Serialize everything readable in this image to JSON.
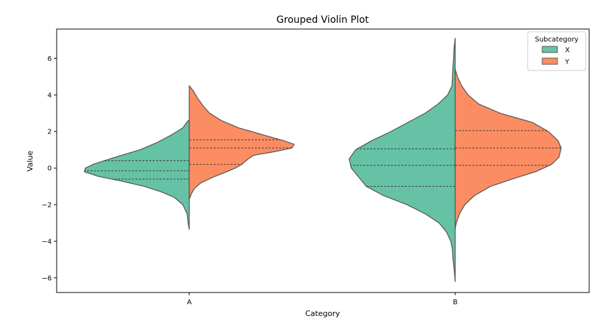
{
  "chart_data": {
    "type": "violin",
    "title": "Grouped Violin Plot",
    "xlabel": "Category",
    "ylabel": "Value",
    "categories": [
      "A",
      "B"
    ],
    "ylim": [
      -6.8,
      7.6
    ],
    "yticks": [
      -6,
      -4,
      -2,
      0,
      2,
      4,
      6
    ],
    "split": true,
    "inner": "quartile",
    "legend": {
      "title": "Subcategory",
      "placement": "top-right"
    },
    "series": [
      {
        "name": "X",
        "color": "#66c2a5",
        "violins": [
          {
            "category": "A",
            "quartiles": [
              -0.6,
              -0.15,
              0.4
            ],
            "profile": [
              [
                2.6,
                0.01
              ],
              [
                2.2,
                0.06
              ],
              [
                1.8,
                0.17
              ],
              [
                1.4,
                0.3
              ],
              [
                1.0,
                0.46
              ],
              [
                0.6,
                0.69
              ],
              [
                0.2,
                0.9
              ],
              [
                0.0,
                0.97
              ],
              [
                -0.2,
                0.98
              ],
              [
                -0.45,
                0.85
              ],
              [
                -0.7,
                0.64
              ],
              [
                -1.0,
                0.42
              ],
              [
                -1.3,
                0.26
              ],
              [
                -1.6,
                0.14
              ],
              [
                -2.0,
                0.06
              ],
              [
                -2.5,
                0.02
              ],
              [
                -3.0,
                0.01
              ],
              [
                -3.35,
                0.0
              ]
            ]
          },
          {
            "category": "B",
            "quartiles": [
              -1.0,
              0.15,
              1.05
            ],
            "profile": [
              [
                7.1,
                0.0
              ],
              [
                6.6,
                0.01
              ],
              [
                6.0,
                0.015
              ],
              [
                5.6,
                0.02
              ],
              [
                5.0,
                0.025
              ],
              [
                4.5,
                0.03
              ],
              [
                4.0,
                0.07
              ],
              [
                3.5,
                0.16
              ],
              [
                3.0,
                0.28
              ],
              [
                2.5,
                0.44
              ],
              [
                2.0,
                0.6
              ],
              [
                1.5,
                0.78
              ],
              [
                1.0,
                0.93
              ],
              [
                0.5,
                0.99
              ],
              [
                0.0,
                0.97
              ],
              [
                -0.5,
                0.9
              ],
              [
                -1.0,
                0.83
              ],
              [
                -1.5,
                0.67
              ],
              [
                -2.0,
                0.45
              ],
              [
                -2.5,
                0.28
              ],
              [
                -3.0,
                0.15
              ],
              [
                -3.5,
                0.08
              ],
              [
                -4.0,
                0.04
              ],
              [
                -4.5,
                0.025
              ],
              [
                -5.0,
                0.02
              ],
              [
                -5.5,
                0.01
              ],
              [
                -6.2,
                0.0
              ]
            ]
          }
        ]
      },
      {
        "name": "Y",
        "color": "#fc8d62",
        "violins": [
          {
            "category": "A",
            "quartiles": [
              0.2,
              1.1,
              1.55
            ],
            "profile": [
              [
                4.5,
                0.0
              ],
              [
                4.2,
                0.04
              ],
              [
                3.8,
                0.08
              ],
              [
                3.4,
                0.13
              ],
              [
                3.0,
                0.19
              ],
              [
                2.6,
                0.3
              ],
              [
                2.2,
                0.46
              ],
              [
                1.8,
                0.7
              ],
              [
                1.5,
                0.88
              ],
              [
                1.3,
                0.98
              ],
              [
                1.1,
                0.96
              ],
              [
                0.9,
                0.8
              ],
              [
                0.7,
                0.6
              ],
              [
                0.5,
                0.55
              ],
              [
                0.2,
                0.49
              ],
              [
                0.0,
                0.43
              ],
              [
                -0.2,
                0.35
              ],
              [
                -0.5,
                0.22
              ],
              [
                -0.8,
                0.11
              ],
              [
                -1.1,
                0.05
              ],
              [
                -1.4,
                0.02
              ],
              [
                -1.7,
                0.0
              ]
            ]
          },
          {
            "category": "B",
            "quartiles": [
              0.15,
              1.1,
              2.05
            ],
            "profile": [
              [
                5.4,
                0.0
              ],
              [
                5.0,
                0.02
              ],
              [
                4.5,
                0.06
              ],
              [
                4.0,
                0.12
              ],
              [
                3.5,
                0.22
              ],
              [
                3.0,
                0.42
              ],
              [
                2.5,
                0.72
              ],
              [
                2.0,
                0.87
              ],
              [
                1.5,
                0.96
              ],
              [
                1.1,
                0.99
              ],
              [
                0.6,
                0.97
              ],
              [
                0.2,
                0.9
              ],
              [
                -0.2,
                0.75
              ],
              [
                -0.6,
                0.53
              ],
              [
                -1.0,
                0.33
              ],
              [
                -1.5,
                0.18
              ],
              [
                -2.0,
                0.09
              ],
              [
                -2.5,
                0.04
              ],
              [
                -3.0,
                0.01
              ],
              [
                -3.3,
                0.0
              ]
            ]
          }
        ]
      }
    ]
  }
}
